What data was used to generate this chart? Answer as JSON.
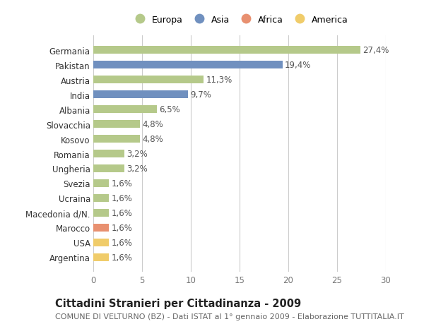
{
  "countries": [
    "Germania",
    "Pakistan",
    "Austria",
    "India",
    "Albania",
    "Slovacchia",
    "Kosovo",
    "Romania",
    "Ungheria",
    "Svezia",
    "Ucraina",
    "Macedonia d/N.",
    "Marocco",
    "USA",
    "Argentina"
  ],
  "values": [
    27.4,
    19.4,
    11.3,
    9.7,
    6.5,
    4.8,
    4.8,
    3.2,
    3.2,
    1.6,
    1.6,
    1.6,
    1.6,
    1.6,
    1.6
  ],
  "labels": [
    "27,4%",
    "19,4%",
    "11,3%",
    "9,7%",
    "6,5%",
    "4,8%",
    "4,8%",
    "3,2%",
    "3,2%",
    "1,6%",
    "1,6%",
    "1,6%",
    "1,6%",
    "1,6%",
    "1,6%"
  ],
  "continents": [
    "Europa",
    "Asia",
    "Europa",
    "Asia",
    "Europa",
    "Europa",
    "Europa",
    "Europa",
    "Europa",
    "Europa",
    "Europa",
    "Europa",
    "Africa",
    "America",
    "America"
  ],
  "colors": {
    "Europa": "#b5c98a",
    "Asia": "#7090bf",
    "Africa": "#e89070",
    "America": "#f0cc6a"
  },
  "xlim": [
    0,
    30
  ],
  "xticks": [
    0,
    5,
    10,
    15,
    20,
    25,
    30
  ],
  "title": "Cittadini Stranieri per Cittadinanza - 2009",
  "subtitle": "COMUNE DI VELTURNO (BZ) - Dati ISTAT al 1° gennaio 2009 - Elaborazione TUTTITALIA.IT",
  "background_color": "#ffffff",
  "grid_color": "#cccccc",
  "bar_height": 0.55,
  "label_fontsize": 8.5,
  "tick_fontsize": 8.5,
  "title_fontsize": 10.5,
  "subtitle_fontsize": 8
}
